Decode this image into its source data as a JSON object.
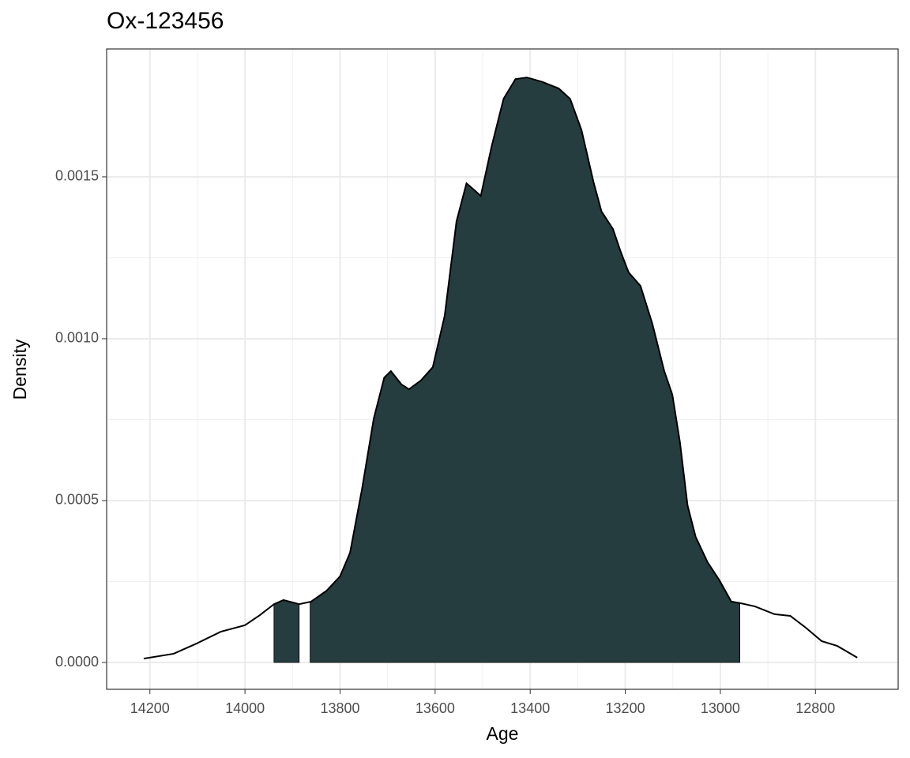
{
  "chart_data": {
    "type": "density",
    "title": "Ox-123456",
    "x_label": "Age",
    "y_label": "Density",
    "x": [
      14213,
      14150,
      14101,
      14051,
      14000,
      13969,
      13939,
      13919,
      13886,
      13861,
      13828,
      13800,
      13779,
      13754,
      13729,
      13707,
      13693,
      13671,
      13655,
      13630,
      13605,
      13580,
      13555,
      13534,
      13519,
      13504,
      13481,
      13456,
      13431,
      13407,
      13374,
      13340,
      13316,
      13292,
      13267,
      13250,
      13226,
      13209,
      13193,
      13168,
      13143,
      13118,
      13101,
      13085,
      13069,
      13052,
      13027,
      13002,
      12977,
      12957,
      12927,
      12886,
      12853,
      12820,
      12787,
      12754,
      12712
    ],
    "values": [
      1.2e-05,
      2.7e-05,
      5.9e-05,
      9.5e-05,
      0.000115,
      0.000146,
      0.00018,
      0.000193,
      0.00018,
      0.000188,
      0.000222,
      0.000266,
      0.000339,
      0.000534,
      0.000754,
      0.00088,
      0.0009,
      0.000859,
      0.000844,
      0.000871,
      0.000912,
      0.00107,
      0.001363,
      0.00148,
      0.001461,
      0.001441,
      0.001595,
      0.001741,
      0.001802,
      0.001807,
      0.001793,
      0.001773,
      0.001741,
      0.001644,
      0.001485,
      0.001393,
      0.001339,
      0.001266,
      0.001205,
      0.001163,
      0.001046,
      0.0009,
      0.000827,
      0.00068,
      0.000485,
      0.000388,
      0.00031,
      0.000254,
      0.000188,
      0.000183,
      0.000173,
      0.000149,
      0.000144,
      0.000107,
      6.6e-05,
      5.1e-05,
      1.5e-05
    ],
    "color": "#263d3f",
    "line_color": "#000000",
    "regions": [
      {
        "from": 13939,
        "to": 13886
      },
      {
        "from": 13863,
        "to": 12959
      }
    ],
    "xlim": [
      14291,
      12626
    ],
    "xticks": [
      14200,
      14000,
      13800,
      13600,
      13400,
      13200,
      13000,
      12800
    ],
    "ylim": [
      -8.29e-05,
      0.001895
    ],
    "yticks": [
      {
        "value": 0,
        "label": "0.0000"
      },
      {
        "value": 0.0005,
        "label": "0.0005"
      },
      {
        "value": 0.001,
        "label": "0.0010"
      },
      {
        "value": 0.0015,
        "label": "0.0015"
      }
    ],
    "grid": true
  }
}
